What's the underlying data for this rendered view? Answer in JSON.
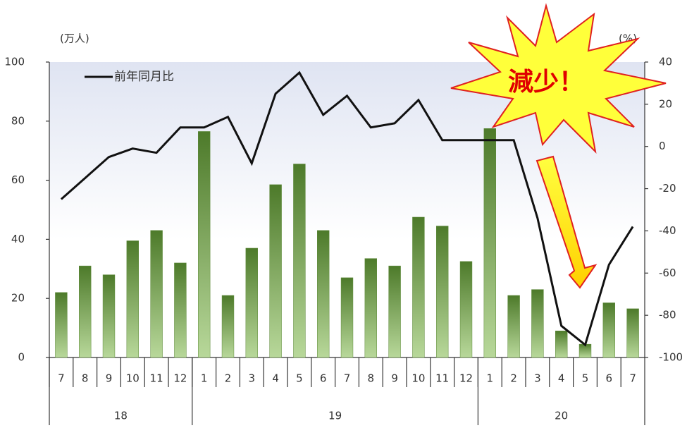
{
  "chart_data": {
    "type": "bar_line",
    "y_label": "(万人)",
    "y2_label": "(%)",
    "annotation": "減少！",
    "categories": [
      "7",
      "8",
      "9",
      "10",
      "11",
      "12",
      "1",
      "2",
      "3",
      "4",
      "5",
      "6",
      "7",
      "8",
      "9",
      "10",
      "11",
      "12",
      "1",
      "2",
      "3",
      "4",
      "5",
      "6",
      "7"
    ],
    "year_groups": [
      {
        "label": "18",
        "count": 6
      },
      {
        "label": "19",
        "count": 12
      },
      {
        "label": "20",
        "count": 7
      }
    ],
    "series": [
      {
        "type": "bar",
        "color": "#5e8a3a",
        "values": [
          22,
          31,
          28,
          39.5,
          43,
          32,
          76.5,
          21,
          37,
          58.5,
          65.5,
          43,
          27,
          33.5,
          31,
          47.5,
          44.5,
          32.5,
          77.5,
          21,
          23,
          9,
          4.5,
          18.5,
          16.5
        ]
      },
      {
        "type": "line",
        "name": "前年同月比",
        "color": "#111111",
        "axis": "y2",
        "values": [
          -25,
          -15,
          -5,
          -1,
          -3,
          9,
          9,
          14,
          -8,
          25,
          35,
          15,
          24,
          9,
          11,
          22,
          3,
          3,
          3,
          3,
          -34,
          -85,
          -94,
          -56,
          -38
        ]
      }
    ],
    "ylim": [
      0,
      100
    ],
    "yticks": [
      0,
      20,
      40,
      60,
      80,
      100
    ],
    "y2lim": [
      -100,
      40
    ],
    "y2ticks": [
      -100,
      -80,
      -60,
      -40,
      -20,
      0,
      20,
      40
    ]
  }
}
